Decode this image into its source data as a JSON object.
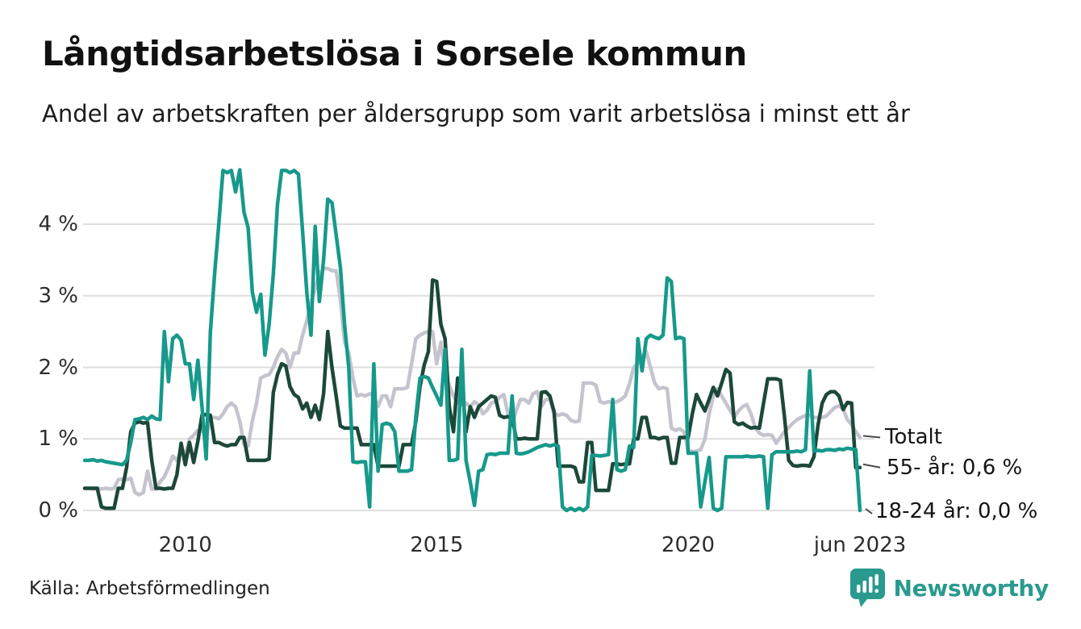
{
  "page": {
    "title": "Långtidsarbetslösa i Sorsele kommun",
    "subtitle": "Andel av arbetskraften per åldersgrupp som varit arbetslösa i minst ett år",
    "source": "Källa: Arbetsförmedlingen",
    "brand": "Newsworthy"
  },
  "chart_data": {
    "type": "line",
    "title": "Långtidsarbetslösa i Sorsele kommun",
    "subtitle": "Andel av arbetskraften per åldersgrupp som varit arbetslösa i minst ett år",
    "unit": "% av arbetskraften",
    "frequency": "monthly",
    "x_start": "2008-01",
    "x_end": "2023-06",
    "ylim": [
      0,
      4.8
    ],
    "grid": "horizontal",
    "grid_color": "#dedede",
    "yticks": [
      {
        "value": 0,
        "label": "0 %"
      },
      {
        "value": 1,
        "label": "1 %"
      },
      {
        "value": 2,
        "label": "2 %"
      },
      {
        "value": 3,
        "label": "3 %"
      },
      {
        "value": 4,
        "label": "4 %"
      }
    ],
    "xticks": [
      {
        "label": "2010",
        "month_index": 24
      },
      {
        "label": "2015",
        "month_index": 84
      },
      {
        "label": "2020",
        "month_index": 144
      },
      {
        "label": "jun 2023",
        "month_index": 185
      }
    ],
    "annotations": [
      {
        "label": "Totalt",
        "value": 1.02
      },
      {
        "label": "55- år: 0,6 %",
        "value": 0.6
      },
      {
        "label": "18-24 år: 0,0 %",
        "value": 0.0
      }
    ],
    "series": [
      {
        "name": "Totalt",
        "color": "#c5c3cd",
        "last_value_label": "1,0 %",
        "values": [
          0.31,
          0.31,
          0.3,
          0.31,
          0.3,
          0.31,
          0.3,
          0.31,
          0.43,
          0.44,
          0.43,
          0.45,
          0.25,
          0.22,
          0.25,
          0.55,
          0.3,
          0.3,
          0.4,
          0.47,
          0.6,
          0.76,
          0.7,
          0.84,
          0.78,
          1.0,
          1.05,
          1.12,
          1.12,
          1.02,
          1.3,
          1.3,
          1.28,
          1.35,
          1.45,
          1.5,
          1.45,
          1.25,
          0.92,
          0.9,
          1.25,
          1.5,
          1.85,
          1.88,
          1.9,
          2.0,
          2.15,
          2.25,
          2.2,
          2.0,
          2.2,
          2.2,
          2.45,
          2.65,
          2.9,
          3.1,
          3.3,
          3.38,
          3.38,
          3.35,
          3.35,
          2.95,
          2.35,
          2.2,
          1.85,
          1.6,
          1.62,
          1.6,
          1.63,
          1.6,
          1.45,
          1.6,
          1.6,
          1.45,
          1.7,
          1.7,
          1.7,
          1.72,
          2.05,
          2.4,
          2.45,
          2.48,
          2.5,
          2.5,
          2.05,
          2.35,
          1.9,
          1.75,
          1.6,
          1.5,
          1.48,
          1.5,
          1.45,
          1.52,
          1.48,
          1.35,
          1.4,
          1.5,
          1.52,
          1.58,
          1.62,
          1.35,
          1.2,
          1.4,
          1.55,
          1.55,
          1.5,
          1.63,
          1.66,
          1.45,
          1.55,
          1.55,
          1.36,
          1.33,
          1.35,
          1.33,
          1.26,
          1.24,
          1.25,
          1.78,
          1.78,
          1.78,
          1.75,
          1.52,
          1.5,
          1.52,
          1.5,
          1.52,
          1.55,
          1.6,
          1.77,
          2.0,
          2.05,
          2.15,
          2.22,
          2.0,
          1.78,
          1.7,
          1.72,
          1.7,
          1.15,
          1.12,
          1.14,
          1.1,
          0.85,
          0.82,
          0.83,
          0.85,
          1.0,
          1.35,
          1.6,
          1.7,
          1.6,
          1.5,
          1.4,
          1.3,
          1.39,
          1.45,
          1.48,
          1.35,
          1.16,
          1.08,
          1.05,
          1.06,
          1.05,
          0.94,
          1.02,
          1.1,
          1.16,
          1.22,
          1.27,
          1.3,
          1.33,
          1.33,
          1.3,
          1.3,
          1.3,
          1.32,
          1.38,
          1.44,
          1.46,
          1.42,
          1.27,
          1.2,
          1.1,
          1.02
        ]
      },
      {
        "name": "55- år",
        "color": "#1c4839",
        "last_value_label": "0,6 %",
        "values": [
          0.31,
          0.31,
          0.31,
          0.31,
          0.05,
          0.03,
          0.03,
          0.03,
          0.31,
          0.31,
          0.6,
          1.1,
          1.22,
          1.24,
          1.22,
          1.23,
          0.7,
          0.31,
          0.31,
          0.3,
          0.31,
          0.31,
          0.5,
          0.94,
          0.64,
          0.95,
          0.67,
          0.97,
          1.33,
          1.34,
          1.33,
          0.95,
          0.95,
          0.92,
          0.9,
          0.92,
          0.92,
          1.02,
          1.02,
          0.7,
          0.7,
          0.7,
          0.7,
          0.7,
          0.72,
          1.65,
          1.9,
          2.05,
          2.02,
          1.73,
          1.62,
          1.58,
          1.42,
          1.5,
          1.3,
          1.47,
          1.27,
          1.63,
          2.5,
          2.0,
          1.6,
          1.18,
          1.15,
          1.15,
          1.15,
          1.15,
          0.92,
          0.92,
          0.92,
          0.92,
          0.62,
          0.62,
          0.62,
          0.62,
          0.62,
          0.62,
          0.92,
          0.92,
          0.92,
          1.24,
          1.73,
          2.03,
          2.22,
          3.22,
          3.2,
          2.6,
          2.4,
          1.45,
          1.1,
          1.85,
          1.8,
          1.1,
          1.45,
          1.3,
          1.45,
          1.5,
          1.55,
          1.6,
          1.58,
          1.33,
          1.3,
          1.31,
          1.3,
          1.0,
          1.0,
          1.01,
          1.0,
          1.0,
          1.0,
          1.65,
          1.66,
          1.6,
          1.38,
          0.62,
          0.62,
          0.62,
          0.62,
          0.6,
          0.4,
          0.4,
          0.95,
          0.95,
          0.28,
          0.28,
          0.28,
          0.28,
          0.65,
          0.65,
          0.64,
          0.65,
          0.65,
          1.0,
          1.0,
          1.3,
          1.3,
          1.02,
          1.02,
          1.0,
          1.02,
          1.02,
          0.66,
          0.66,
          1.02,
          1.02,
          1.02,
          1.35,
          1.62,
          1.5,
          1.39,
          1.55,
          1.72,
          1.6,
          1.78,
          1.97,
          1.92,
          1.24,
          1.2,
          1.22,
          1.18,
          1.15,
          1.16,
          1.15,
          1.5,
          1.84,
          1.84,
          1.84,
          1.82,
          1.3,
          0.7,
          0.63,
          0.62,
          0.63,
          0.63,
          0.62,
          0.75,
          1.2,
          1.5,
          1.62,
          1.66,
          1.66,
          1.6,
          1.41,
          1.51,
          1.5,
          0.6,
          0.6
        ]
      },
      {
        "name": "18-24 år",
        "color": "#16998a",
        "last_value_label": "0,0 %",
        "values": [
          0.7,
          0.7,
          0.71,
          0.69,
          0.7,
          0.68,
          0.67,
          0.66,
          0.65,
          0.64,
          0.7,
          0.95,
          1.27,
          1.28,
          1.3,
          1.27,
          1.32,
          1.28,
          1.27,
          2.5,
          1.8,
          2.4,
          2.45,
          2.38,
          2.05,
          2.05,
          1.55,
          2.1,
          1.45,
          0.72,
          2.5,
          3.3,
          4.0,
          4.75,
          4.72,
          4.75,
          4.45,
          4.76,
          4.17,
          3.95,
          3.05,
          2.77,
          3.02,
          2.17,
          2.6,
          3.3,
          4.28,
          4.75,
          4.75,
          4.72,
          4.75,
          4.7,
          3.9,
          3.05,
          2.45,
          3.97,
          2.92,
          3.5,
          4.35,
          4.3,
          3.85,
          3.4,
          2.6,
          2.0,
          0.68,
          0.67,
          0.68,
          0.68,
          0.05,
          2.05,
          0.55,
          1.2,
          1.22,
          1.2,
          1.1,
          0.55,
          0.55,
          0.55,
          0.57,
          1.3,
          1.85,
          1.87,
          1.85,
          1.72,
          1.6,
          1.47,
          2.25,
          0.7,
          0.7,
          0.72,
          2.25,
          0.7,
          0.4,
          0.07,
          0.55,
          0.57,
          0.78,
          0.79,
          0.78,
          0.8,
          0.8,
          0.8,
          1.6,
          0.8,
          0.79,
          0.8,
          0.82,
          0.85,
          0.88,
          0.9,
          0.92,
          0.9,
          0.92,
          0.9,
          0.05,
          0.0,
          0.03,
          0.0,
          0.03,
          0.0,
          0.05,
          0.77,
          0.77,
          0.76,
          0.77,
          0.78,
          1.55,
          0.57,
          0.55,
          0.57,
          0.9,
          0.88,
          2.4,
          1.95,
          2.4,
          2.45,
          2.42,
          2.4,
          2.45,
          3.25,
          3.2,
          2.4,
          2.42,
          2.4,
          0.8,
          0.8,
          0.8,
          0.05,
          0.4,
          0.74,
          0.03,
          0.0,
          0.03,
          0.75,
          0.75,
          0.75,
          0.75,
          0.75,
          0.76,
          0.75,
          0.75,
          0.76,
          0.75,
          0.03,
          0.78,
          0.82,
          0.82,
          0.82,
          0.82,
          0.82,
          0.83,
          0.82,
          0.85,
          1.95,
          0.83,
          0.84,
          0.83,
          0.85,
          0.85,
          0.84,
          0.86,
          0.85,
          0.87,
          0.86,
          0.85,
          0.0
        ]
      }
    ]
  },
  "branding": {
    "name": "Newsworthy",
    "color": "#2a9a8e"
  }
}
